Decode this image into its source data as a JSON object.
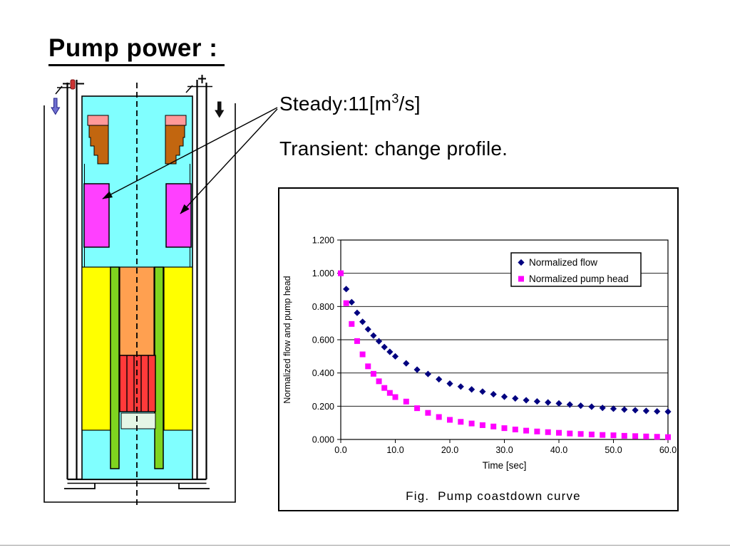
{
  "slide": {
    "title": "Pump power :",
    "steady": {
      "pre": "Steady:11[m",
      "sup": "3",
      "post": "/s]"
    },
    "transient": "Transient: change profile."
  },
  "diagram": {
    "name": "reactor vessel cross-section with primary pumps",
    "colors": {
      "coolant": "#80FFFF",
      "pump": "#FF40FF",
      "shield": "#FFFF00",
      "riser": "#FFA050",
      "core": "#FF3A3A",
      "rods": "#7FD41F",
      "cap_pink": "#FF9999",
      "plug_brown": "#C2660F",
      "core_support": "#E6F6E6",
      "inlet_arrow_blue": "#7070D0",
      "inlet_arrow_black": "#111111",
      "capsule_red": "#CC3333"
    }
  },
  "chart_data": {
    "type": "scatter",
    "title": "Fig.  Pump coastdown curve",
    "xlabel": "Time [sec]",
    "ylabel": "Normalized flow and pump head",
    "xlim": [
      0,
      60
    ],
    "ylim": [
      0,
      1.2
    ],
    "x_ticks": [
      "0.0",
      "10.0",
      "20.0",
      "30.0",
      "40.0",
      "50.0",
      "60.0"
    ],
    "y_ticks": [
      "0.000",
      "0.200",
      "0.400",
      "0.600",
      "0.800",
      "1.000",
      "1.200"
    ],
    "grid": true,
    "legend_position": "upper right",
    "series": [
      {
        "name": "Normalized flow",
        "marker": "diamond",
        "color": "#000080",
        "points": [
          [
            0,
            1.0
          ],
          [
            1,
            0.905
          ],
          [
            2,
            0.826
          ],
          [
            3,
            0.762
          ],
          [
            4,
            0.708
          ],
          [
            5,
            0.663
          ],
          [
            6,
            0.625
          ],
          [
            7,
            0.591
          ],
          [
            8,
            0.556
          ],
          [
            9,
            0.527
          ],
          [
            10,
            0.5
          ],
          [
            12,
            0.458
          ],
          [
            14,
            0.42
          ],
          [
            16,
            0.394
          ],
          [
            18,
            0.362
          ],
          [
            20,
            0.336
          ],
          [
            22,
            0.318
          ],
          [
            24,
            0.301
          ],
          [
            26,
            0.288
          ],
          [
            28,
            0.272
          ],
          [
            30,
            0.257
          ],
          [
            32,
            0.247
          ],
          [
            34,
            0.236
          ],
          [
            36,
            0.229
          ],
          [
            38,
            0.223
          ],
          [
            40,
            0.217
          ],
          [
            42,
            0.21
          ],
          [
            44,
            0.203
          ],
          [
            46,
            0.197
          ],
          [
            48,
            0.19
          ],
          [
            50,
            0.185
          ],
          [
            52,
            0.18
          ],
          [
            54,
            0.176
          ],
          [
            56,
            0.172
          ],
          [
            58,
            0.169
          ],
          [
            60,
            0.167
          ]
        ]
      },
      {
        "name": "Normalized pump head",
        "marker": "square",
        "color": "#FF00FF",
        "points": [
          [
            0,
            1.0
          ],
          [
            1,
            0.82
          ],
          [
            2,
            0.695
          ],
          [
            3,
            0.592
          ],
          [
            4,
            0.512
          ],
          [
            5,
            0.44
          ],
          [
            6,
            0.395
          ],
          [
            7,
            0.35
          ],
          [
            8,
            0.31
          ],
          [
            9,
            0.28
          ],
          [
            10,
            0.255
          ],
          [
            12,
            0.228
          ],
          [
            14,
            0.188
          ],
          [
            16,
            0.16
          ],
          [
            18,
            0.135
          ],
          [
            20,
            0.118
          ],
          [
            22,
            0.106
          ],
          [
            24,
            0.096
          ],
          [
            26,
            0.086
          ],
          [
            28,
            0.078
          ],
          [
            30,
            0.068
          ],
          [
            32,
            0.06
          ],
          [
            34,
            0.053
          ],
          [
            36,
            0.048
          ],
          [
            38,
            0.044
          ],
          [
            40,
            0.04
          ],
          [
            42,
            0.036
          ],
          [
            44,
            0.033
          ],
          [
            46,
            0.03
          ],
          [
            48,
            0.027
          ],
          [
            50,
            0.025
          ],
          [
            52,
            0.022
          ],
          [
            54,
            0.02
          ],
          [
            56,
            0.018
          ],
          [
            58,
            0.016
          ],
          [
            60,
            0.014
          ]
        ]
      }
    ]
  }
}
